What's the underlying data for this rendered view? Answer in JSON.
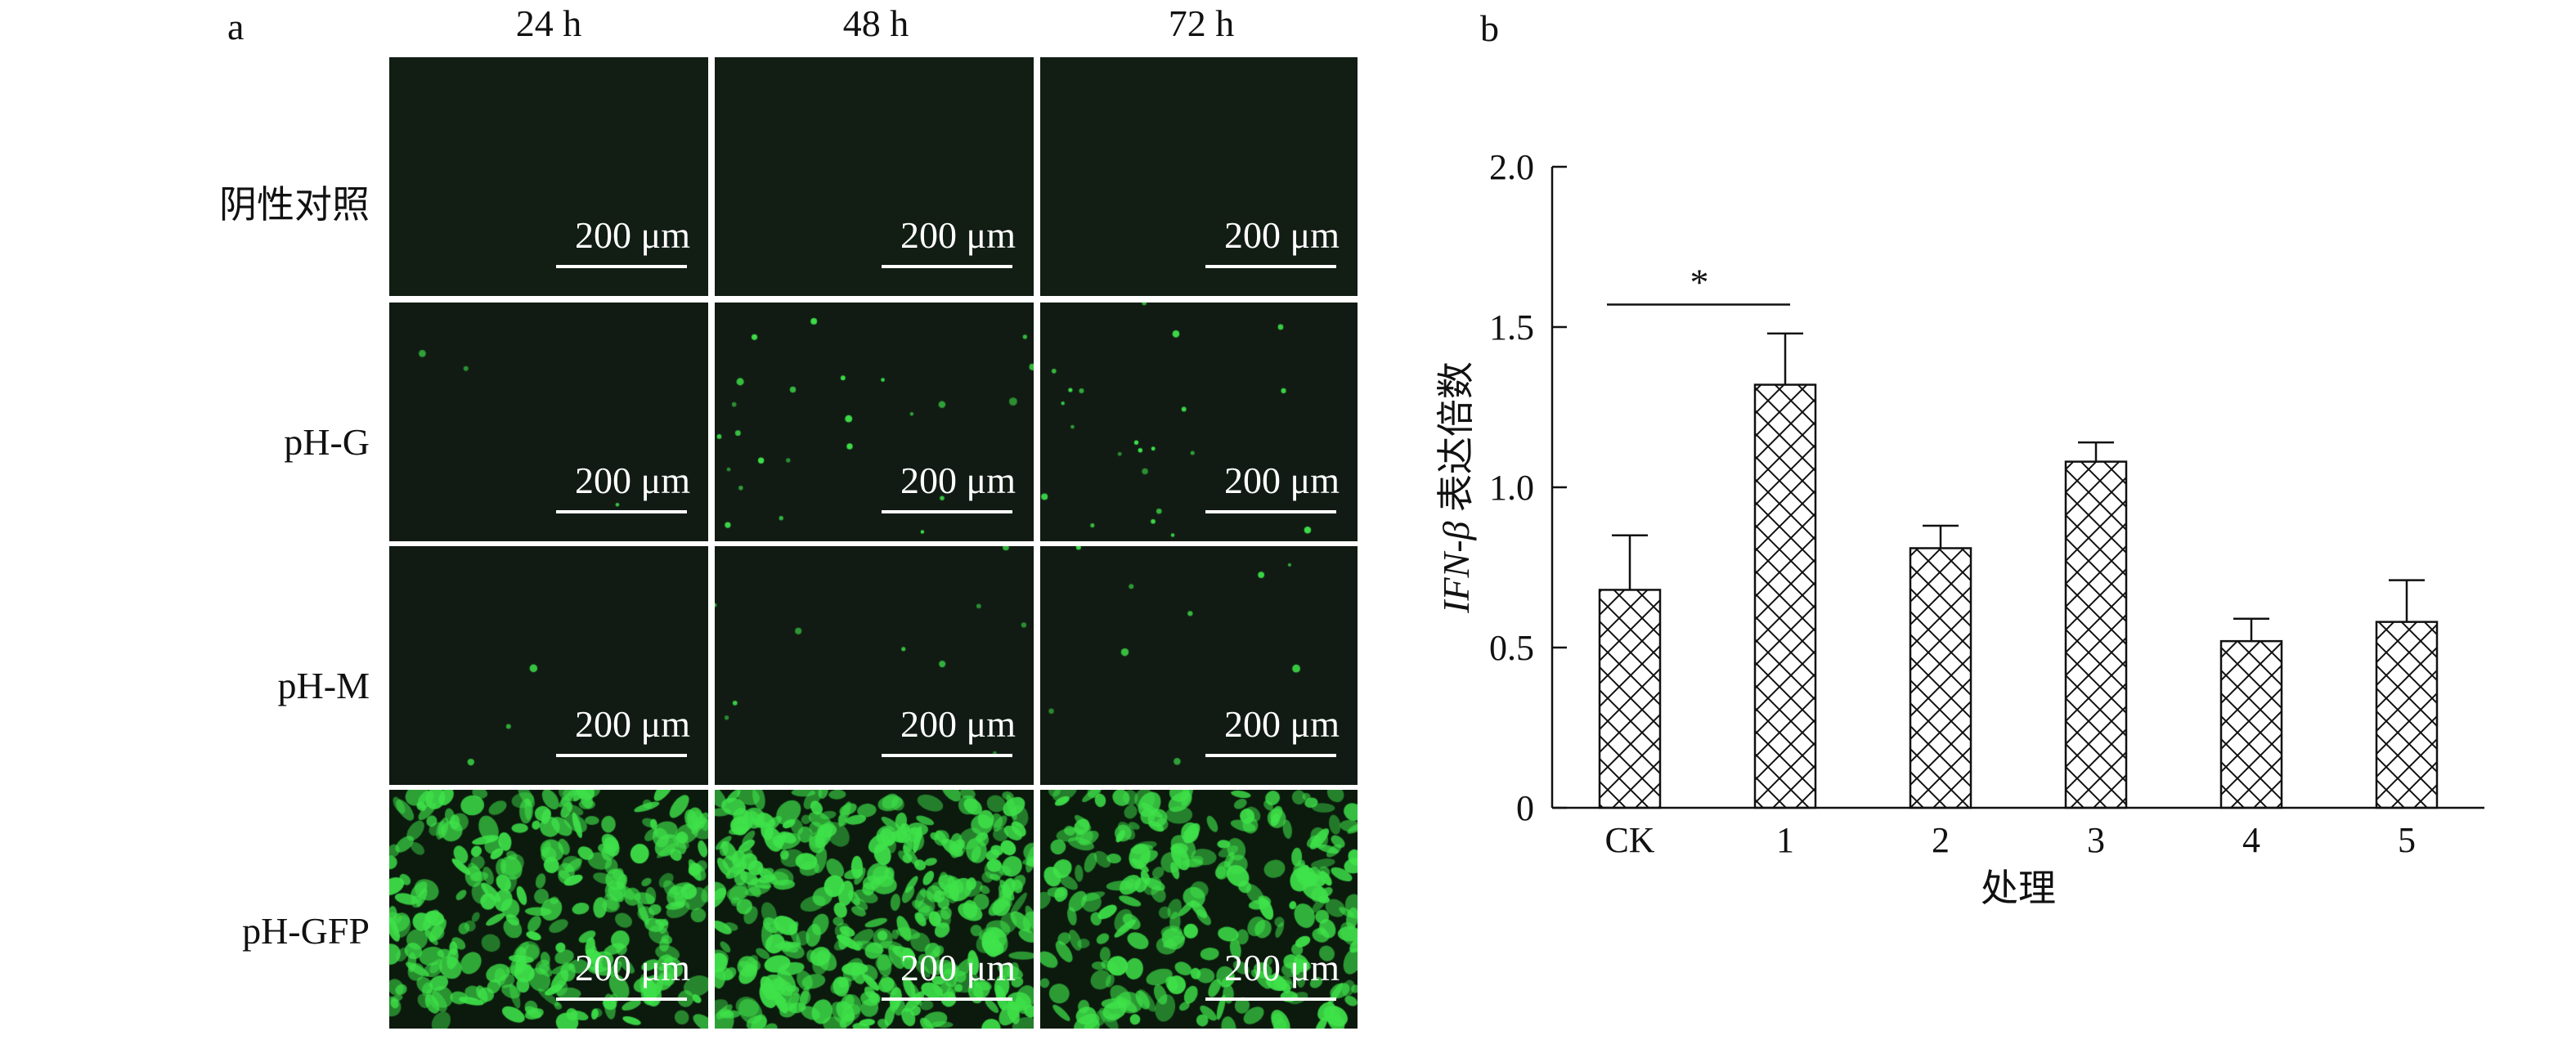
{
  "panel_a": {
    "label": "a",
    "column_headers": [
      "24 h",
      "48 h",
      "72 h"
    ],
    "row_labels": [
      "阴性对照",
      "pH-G",
      "pH-M",
      "pH-GFP"
    ],
    "scale_bar_label": "200 μm",
    "fluorescence_color": "#3fe24a"
  },
  "chart_data": {
    "type": "bar",
    "panel_label": "b",
    "categories": [
      "CK",
      "1",
      "2",
      "3",
      "4",
      "5"
    ],
    "values": [
      0.68,
      1.32,
      0.81,
      1.08,
      0.52,
      0.58
    ],
    "error": [
      0.17,
      0.16,
      0.07,
      0.06,
      0.07,
      0.13
    ],
    "ylabel_italic": "IFN-β",
    "ylabel_rest": " 表达倍数",
    "xlabel": "处理",
    "ylim": [
      0,
      2.0
    ],
    "yticks": [
      0,
      0.5,
      1.0,
      1.5,
      2.0
    ],
    "ytick_labels": [
      "0",
      "0.5",
      "1.0",
      "1.5",
      "2.0"
    ],
    "bar_fill": "crosshatch",
    "significance": [
      {
        "from": "CK",
        "to": "1",
        "label": "*"
      }
    ],
    "grid": false,
    "legend": "none"
  }
}
